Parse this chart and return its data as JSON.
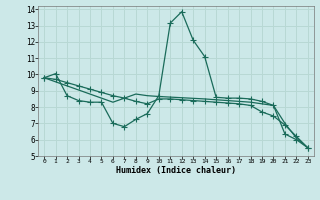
{
  "xlabel": "Humidex (Indice chaleur)",
  "background_color": "#cce8e8",
  "grid_color": "#b8d8d4",
  "line_color": "#1a6b5a",
  "xlim": [
    -0.5,
    23.5
  ],
  "ylim": [
    5,
    14.2
  ],
  "xticks": [
    0,
    1,
    2,
    3,
    4,
    5,
    6,
    7,
    8,
    9,
    10,
    11,
    12,
    13,
    14,
    15,
    16,
    17,
    18,
    19,
    20,
    21,
    22,
    23
  ],
  "yticks": [
    5,
    6,
    7,
    8,
    9,
    10,
    11,
    12,
    13,
    14
  ],
  "line1_x": [
    0,
    1,
    2,
    3,
    4,
    5,
    6,
    7,
    8,
    9,
    10,
    11,
    12,
    13,
    14,
    15,
    16,
    17,
    18,
    19,
    20,
    21,
    22,
    23
  ],
  "line1_y": [
    9.8,
    10.05,
    8.7,
    8.4,
    8.3,
    8.3,
    7.0,
    6.8,
    7.25,
    7.6,
    8.7,
    13.15,
    13.85,
    12.1,
    11.1,
    8.6,
    8.55,
    8.55,
    8.5,
    8.35,
    8.1,
    6.35,
    6.0,
    5.5
  ],
  "line2_x": [
    0,
    1,
    2,
    3,
    4,
    5,
    6,
    7,
    8,
    9,
    10,
    14,
    15,
    16,
    17,
    18,
    19,
    20,
    21,
    22,
    23
  ],
  "line2_y": [
    9.8,
    9.55,
    9.3,
    9.05,
    8.8,
    8.55,
    8.3,
    8.55,
    8.8,
    8.7,
    8.65,
    8.5,
    8.45,
    8.4,
    8.35,
    8.3,
    8.2,
    8.1,
    7.0,
    6.1,
    5.5
  ],
  "line3_x": [
    0,
    1,
    2,
    3,
    4,
    5,
    6,
    7,
    8,
    9,
    10,
    11,
    12,
    13,
    14,
    15,
    16,
    17,
    18,
    19,
    20,
    21,
    22,
    23
  ],
  "line3_y": [
    9.8,
    9.7,
    9.5,
    9.3,
    9.1,
    8.9,
    8.7,
    8.55,
    8.35,
    8.2,
    8.5,
    8.5,
    8.45,
    8.4,
    8.35,
    8.3,
    8.25,
    8.2,
    8.1,
    7.7,
    7.45,
    6.9,
    6.2,
    5.5
  ]
}
